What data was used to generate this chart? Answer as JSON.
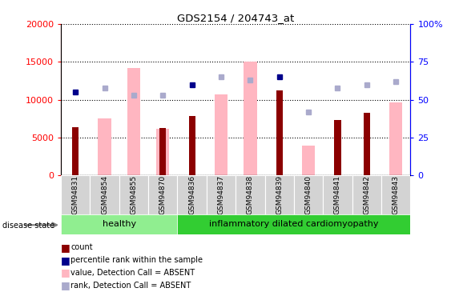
{
  "title": "GDS2154 / 204743_at",
  "samples": [
    "GSM94831",
    "GSM94854",
    "GSM94855",
    "GSM94870",
    "GSM94836",
    "GSM94837",
    "GSM94838",
    "GSM94839",
    "GSM94840",
    "GSM94841",
    "GSM94842",
    "GSM94843"
  ],
  "count_values": [
    6400,
    0,
    0,
    6300,
    7900,
    0,
    0,
    11200,
    0,
    7300,
    8300,
    0
  ],
  "absent_bar_values": [
    0,
    7500,
    14200,
    6200,
    0,
    10700,
    15000,
    0,
    3900,
    0,
    0,
    9600
  ],
  "percentile_values": [
    55,
    0,
    0,
    0,
    60,
    0,
    0,
    65,
    0,
    0,
    0,
    0
  ],
  "absent_rank_values": [
    0,
    58,
    53,
    53,
    0,
    65,
    63,
    0,
    42,
    58,
    60,
    62
  ],
  "ylim_left": [
    0,
    20000
  ],
  "ylim_right": [
    0,
    100
  ],
  "yticks_left": [
    0,
    5000,
    10000,
    15000,
    20000
  ],
  "yticks_right": [
    0,
    25,
    50,
    75,
    100
  ],
  "bar_color_dark_red": "#8B0000",
  "bar_color_pink": "#FFB6C1",
  "dot_dark_blue": "#00008B",
  "dot_light_blue": "#AAAACC",
  "healthy_color": "#90EE90",
  "idc_color": "#32CD32",
  "healthy_count": 4,
  "idc_count": 8,
  "legend_labels": [
    "count",
    "percentile rank within the sample",
    "value, Detection Call = ABSENT",
    "rank, Detection Call = ABSENT"
  ],
  "legend_colors": [
    "#8B0000",
    "#00008B",
    "#FFB6C1",
    "#AAAACC"
  ]
}
